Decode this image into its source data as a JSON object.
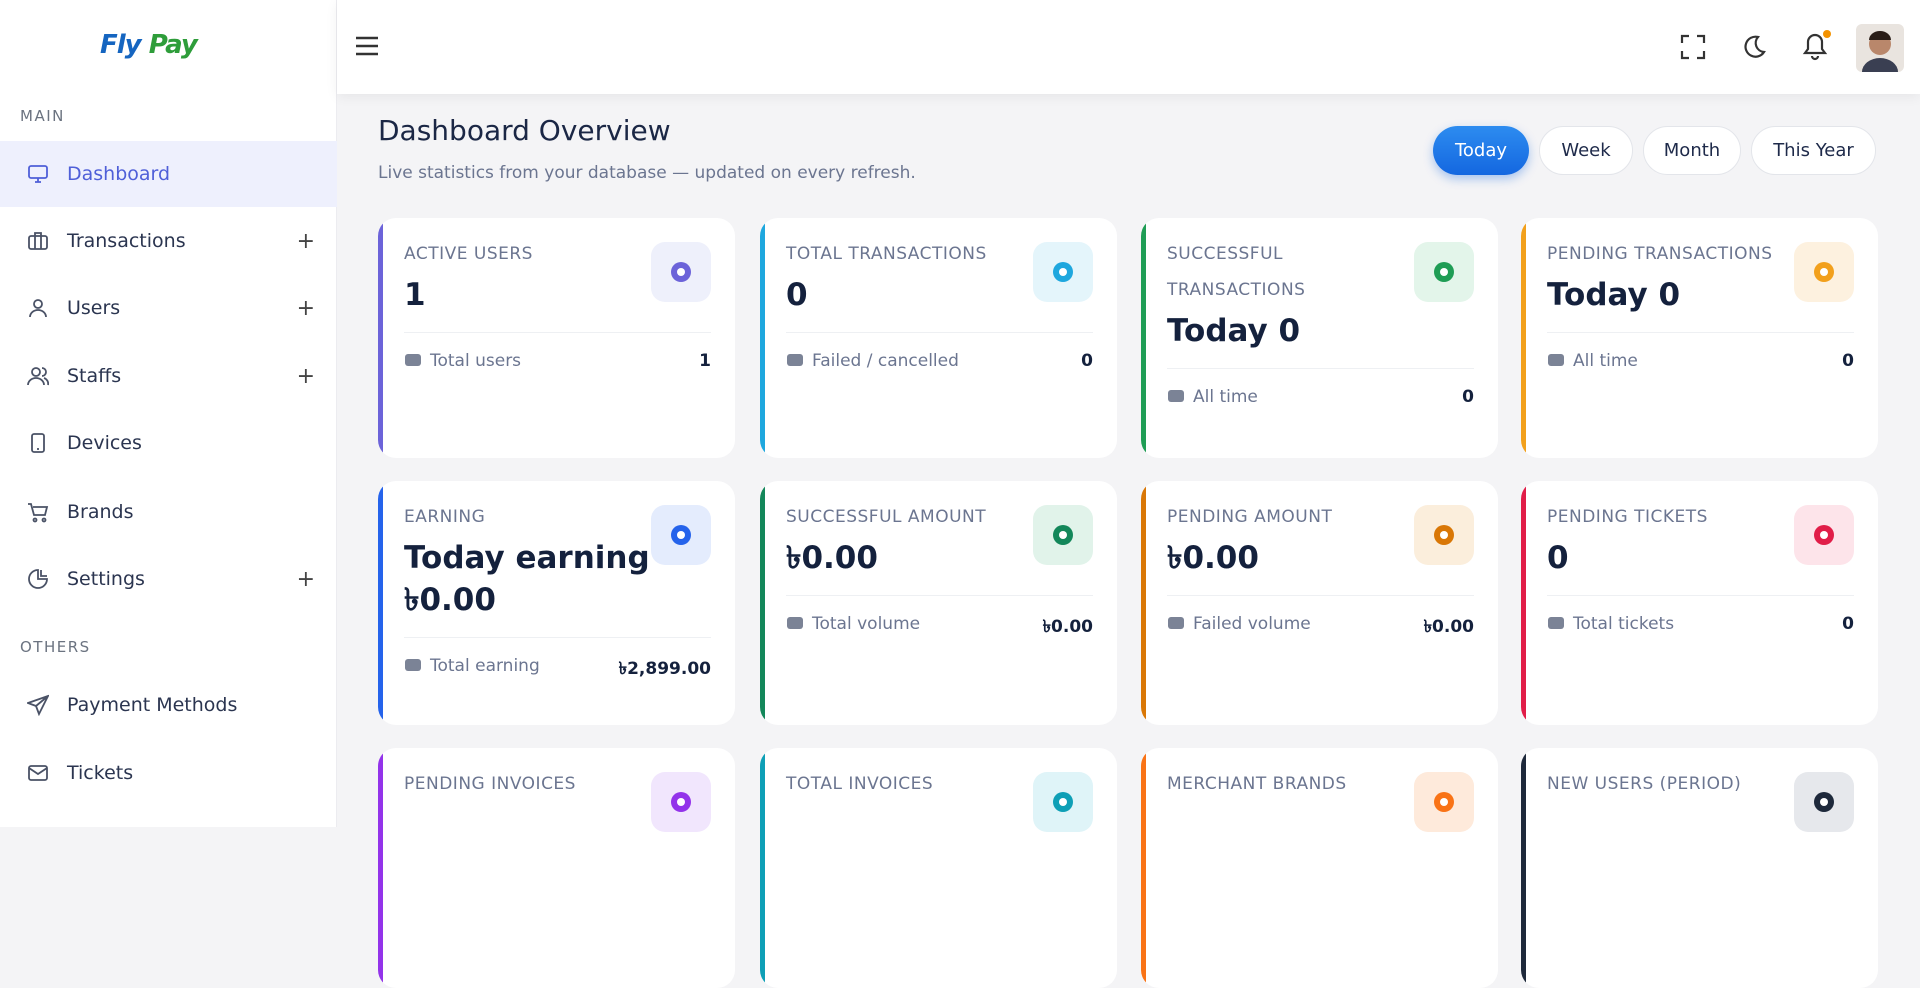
{
  "brand": {
    "part1": "Fly",
    "part2": "Pay"
  },
  "sidebar": {
    "sections": [
      {
        "title": "MAIN",
        "items": [
          {
            "label": "Dashboard",
            "icon": "monitor",
            "active": true
          },
          {
            "label": "Transactions",
            "icon": "briefcase",
            "expand": "+"
          },
          {
            "label": "Users",
            "icon": "user",
            "expand": "+"
          },
          {
            "label": "Staffs",
            "icon": "users",
            "expand": "+"
          },
          {
            "label": "Devices",
            "icon": "phone"
          },
          {
            "label": "Brands",
            "icon": "cart"
          },
          {
            "label": "Settings",
            "icon": "pie",
            "expand": "+"
          }
        ]
      },
      {
        "title": "OTHERS",
        "items": [
          {
            "label": "Payment Methods",
            "icon": "send"
          },
          {
            "label": "Tickets",
            "icon": "mail"
          }
        ]
      }
    ]
  },
  "page": {
    "title": "Dashboard Overview",
    "subtitle": "Live statistics from your database — updated on every refresh.",
    "periods": [
      {
        "label": "Today",
        "active": true
      },
      {
        "label": "Week"
      },
      {
        "label": "Month"
      },
      {
        "label": "This Year"
      }
    ]
  },
  "cards": [
    {
      "label": "ACTIVE USERS",
      "value": "1",
      "foot_label": "Total users",
      "foot_value": "1",
      "accent": "#6c63d9",
      "tint": "#eef0fb"
    },
    {
      "label": "TOTAL TRANSACTIONS",
      "value": "0",
      "foot_label": "Failed / cancelled",
      "foot_value": "0",
      "accent": "#1ea7de",
      "tint": "#e4f5fb"
    },
    {
      "label": "SUCCESSFUL TRANSACTIONS",
      "value": "Today 0",
      "foot_label": "All time",
      "foot_value": "0",
      "accent": "#1f9d55",
      "tint": "#e3f5ea"
    },
    {
      "label": "PENDING TRANSACTIONS",
      "value": "Today 0",
      "foot_label": "All time",
      "foot_value": "0",
      "accent": "#f2a01c",
      "tint": "#fdf1df"
    },
    {
      "label": "EARNING",
      "value": "Today earning ৳0.00",
      "foot_label": "Total earning",
      "foot_value": "৳2,899.00",
      "accent": "#2563eb",
      "tint": "#e4ecfd"
    },
    {
      "label": "SUCCESSFUL AMOUNT",
      "value": "৳0.00",
      "foot_label": "Total volume",
      "foot_value": "৳0.00",
      "accent": "#13875a",
      "tint": "#e1f3ea"
    },
    {
      "label": "PENDING AMOUNT",
      "value": "৳0.00",
      "foot_label": "Failed volume",
      "foot_value": "৳0.00",
      "accent": "#d97706",
      "tint": "#fbeedc"
    },
    {
      "label": "PENDING TICKETS",
      "value": "0",
      "foot_label": "Total tickets",
      "foot_value": "0",
      "accent": "#e11d48",
      "tint": "#fde4ea"
    },
    {
      "label": "PENDING INVOICES",
      "value": "",
      "foot_label": "",
      "foot_value": "",
      "accent": "#9333ea",
      "tint": "#f1e6fd"
    },
    {
      "label": "TOTAL INVOICES",
      "value": "",
      "foot_label": "",
      "foot_value": "",
      "accent": "#0e9fb6",
      "tint": "#dff4f8"
    },
    {
      "label": "MERCHANT BRANDS",
      "value": "",
      "foot_label": "",
      "foot_value": "",
      "accent": "#f97316",
      "tint": "#feeadb"
    },
    {
      "label": "NEW USERS (PERIOD)",
      "value": "",
      "foot_label": "",
      "foot_value": "",
      "accent": "#1e293b",
      "tint": "#e6e8ec"
    }
  ]
}
